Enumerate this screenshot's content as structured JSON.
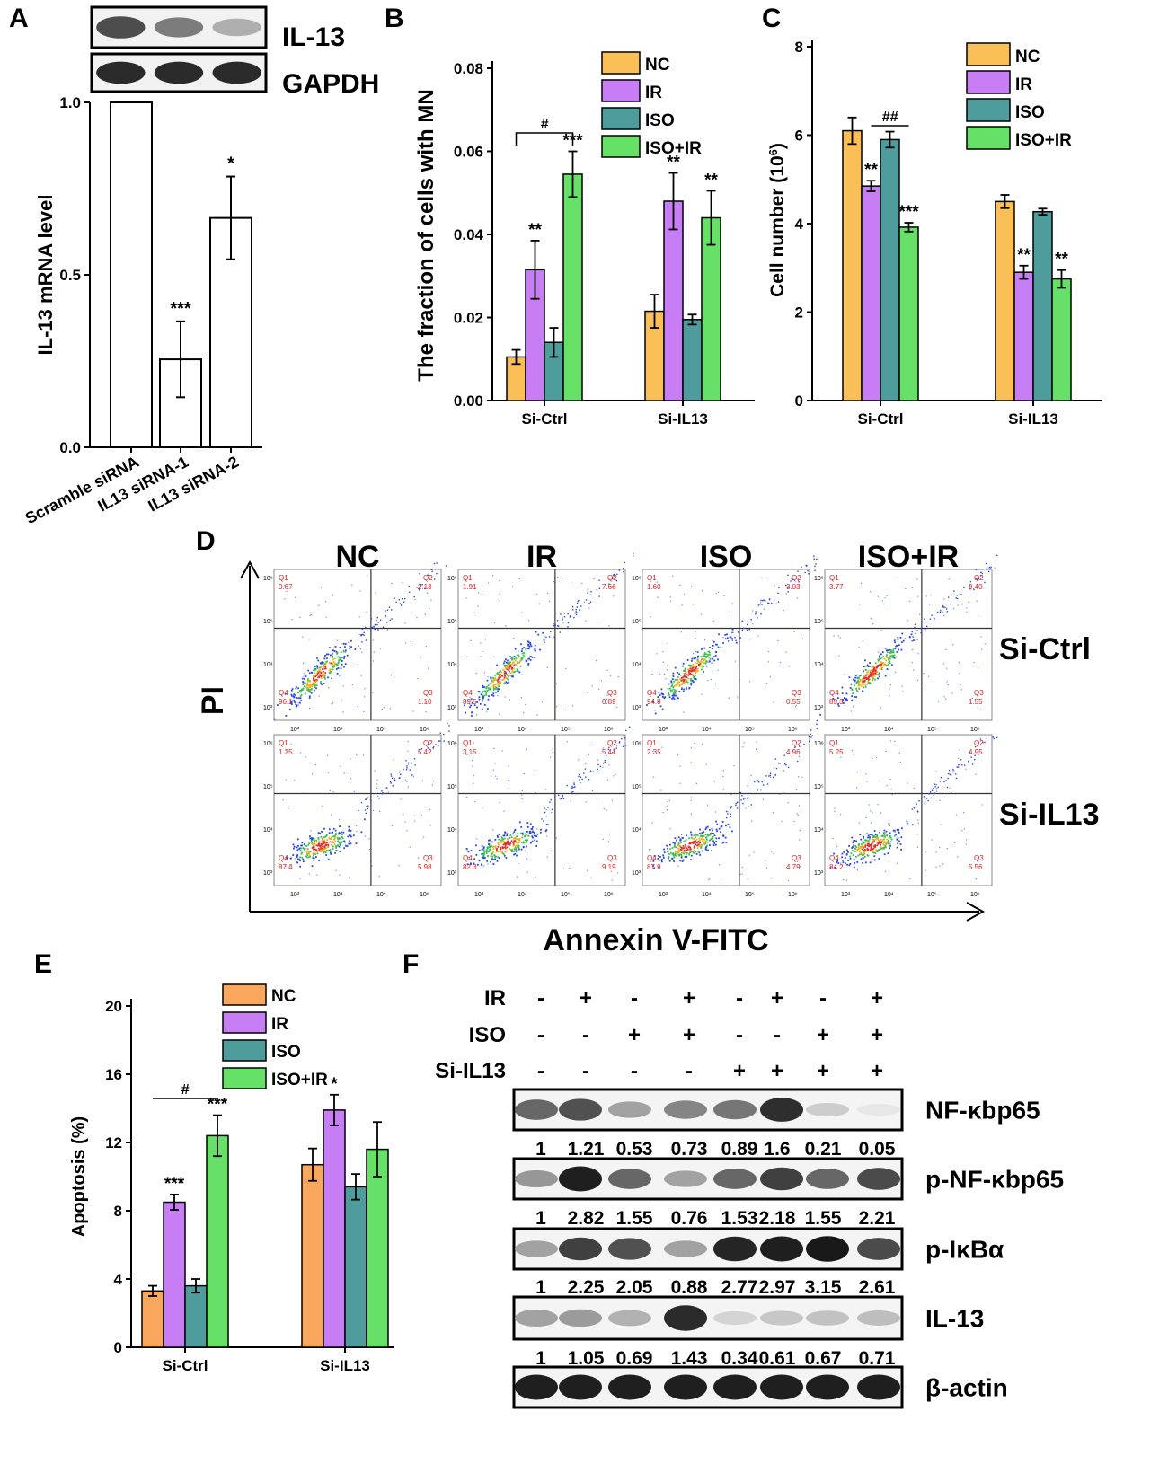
{
  "colors": {
    "NC": "#FBBF57",
    "IR": "#C77DF3",
    "ISO": "#4F9C9C",
    "ISO+IR": "#66E066",
    "NC_E": "#F9A75C",
    "red": "#E02020",
    "blue": "#1F3FD8"
  },
  "panelA": {
    "letter": "A",
    "blot_labels": [
      "IL-13",
      "GAPDH"
    ],
    "chart_data": {
      "type": "bar",
      "categories": [
        "Scramble siRNA",
        "IL13 siRNA-1",
        "IL13 siRNA-2"
      ],
      "values": [
        1.0,
        0.255,
        0.665
      ],
      "errors": [
        0,
        0.11,
        0.12
      ],
      "significance": [
        "",
        "***",
        "*"
      ],
      "ylabel": "IL-13 mRNA level",
      "ylim": [
        0,
        1.0
      ],
      "yticks": [
        "0.0",
        "0.5",
        "1.0"
      ],
      "ytick_values": [
        0,
        0.5,
        1.0
      ]
    }
  },
  "panelB": {
    "letter": "B",
    "chart_data": {
      "type": "bar",
      "categories": [
        "Si-Ctrl",
        "Si-IL13"
      ],
      "series": [
        {
          "name": "NC",
          "values": [
            0.0105,
            0.0215
          ],
          "errors": [
            0.0017,
            0.004
          ],
          "sig": [
            "",
            ""
          ]
        },
        {
          "name": "IR",
          "values": [
            0.0315,
            0.048
          ],
          "errors": [
            0.007,
            0.0068
          ],
          "sig": [
            "**",
            "**"
          ]
        },
        {
          "name": "ISO",
          "values": [
            0.014,
            0.0195
          ],
          "errors": [
            0.0035,
            0.0012
          ],
          "sig": [
            "",
            ""
          ]
        },
        {
          "name": "ISO+IR",
          "values": [
            0.0545,
            0.044
          ],
          "errors": [
            0.0055,
            0.0065
          ],
          "sig": [
            "***",
            "**"
          ]
        }
      ],
      "ylabel": "The fraction of cells with MN",
      "ylim": [
        0,
        0.08
      ],
      "yticks": [
        "0.00",
        "0.02",
        "0.04",
        "0.06",
        "0.08"
      ],
      "ytick_values": [
        0,
        0.02,
        0.04,
        0.06,
        0.08
      ],
      "bracket": "#"
    }
  },
  "panelC": {
    "letter": "C",
    "chart_data": {
      "type": "bar",
      "categories": [
        "Si-Ctrl",
        "Si-IL13"
      ],
      "series": [
        {
          "name": "NC",
          "values": [
            6.1,
            4.5
          ],
          "errors": [
            0.3,
            0.15
          ],
          "sig": [
            "",
            ""
          ]
        },
        {
          "name": "IR",
          "values": [
            4.85,
            2.9
          ],
          "errors": [
            0.12,
            0.15
          ],
          "sig": [
            "**",
            "**"
          ]
        },
        {
          "name": "ISO",
          "values": [
            5.9,
            4.27
          ],
          "errors": [
            0.18,
            0.07
          ],
          "sig": [
            "",
            ""
          ]
        },
        {
          "name": "ISO+IR",
          "values": [
            3.92,
            2.75
          ],
          "errors": [
            0.1,
            0.2
          ],
          "sig": [
            "***",
            "**"
          ]
        }
      ],
      "ylabel_main": "Cell number (10",
      "ylabel_sup": "6",
      "ylabel_end": ")",
      "ylim": [
        0,
        8
      ],
      "yticks": [
        "0",
        "2",
        "4",
        "6",
        "8"
      ],
      "ytick_values": [
        0,
        2,
        4,
        6,
        8
      ],
      "bracket": "##"
    }
  },
  "panelD": {
    "letter": "D",
    "columns": [
      "NC",
      "IR",
      "ISO",
      "ISO+IR"
    ],
    "rows": [
      "Si-Ctrl",
      "Si-IL13"
    ],
    "xlabel": "Annexin V-FITC",
    "ylabel": "PI",
    "quadrant_names": [
      "Q1",
      "Q2",
      "Q3",
      "Q4"
    ],
    "axis_ticks": [
      "10³",
      "10⁴",
      "10⁵",
      "10⁶"
    ],
    "quadrants": [
      [
        [
          "0.67",
          "2.13",
          "1.10",
          "96.1"
        ],
        [
          "1.91",
          "7.66",
          "0.89",
          "89.5"
        ],
        [
          "1.60",
          "3.03",
          "0.55",
          "94.8"
        ],
        [
          "3.77",
          "9.40",
          "1.55",
          "85.3"
        ]
      ],
      [
        [
          "1.25",
          "5.42",
          "5.98",
          "87.4"
        ],
        [
          "3.15",
          "5.41",
          "9.19",
          "82.3"
        ],
        [
          "2.35",
          "4.96",
          "4.79",
          "87.9"
        ],
        [
          "5.25",
          "4.95",
          "5.56",
          "84.2"
        ]
      ]
    ]
  },
  "panelE": {
    "letter": "E",
    "chart_data": {
      "type": "bar",
      "categories": [
        "Si-Ctrl",
        "Si-IL13"
      ],
      "series": [
        {
          "name": "NC",
          "values": [
            3.3,
            10.7
          ],
          "errors": [
            0.3,
            0.95
          ],
          "sig": [
            "",
            ""
          ]
        },
        {
          "name": "IR",
          "values": [
            8.5,
            13.9
          ],
          "errors": [
            0.45,
            0.9
          ],
          "sig": [
            "***",
            "*"
          ]
        },
        {
          "name": "ISO",
          "values": [
            3.6,
            9.4
          ],
          "errors": [
            0.4,
            0.75
          ],
          "sig": [
            "",
            ""
          ]
        },
        {
          "name": "ISO+IR",
          "values": [
            12.4,
            11.6
          ],
          "errors": [
            1.2,
            1.6
          ],
          "sig": [
            "***",
            ""
          ]
        }
      ],
      "ylabel": "Apoptosis (%)",
      "ylim": [
        0,
        20
      ],
      "yticks": [
        "0",
        "4",
        "8",
        "12",
        "16",
        "20"
      ],
      "ytick_values": [
        0,
        4,
        8,
        12,
        16,
        20
      ],
      "bracket": "#"
    }
  },
  "panelF": {
    "letter": "F",
    "conditions": [
      {
        "label": "IR",
        "values": [
          "-",
          "+",
          "-",
          "+",
          "-",
          "+",
          "-",
          "+"
        ]
      },
      {
        "label": "ISO",
        "values": [
          "-",
          "-",
          "+",
          "+",
          "-",
          "-",
          "+",
          "+"
        ]
      },
      {
        "label": "Si-IL13",
        "values": [
          "-",
          "-",
          "-",
          "-",
          "+",
          "+",
          "+",
          "+"
        ]
      }
    ],
    "blots": [
      {
        "label": "NF-κbp65",
        "values": [
          "1",
          "1.21",
          "0.53",
          "0.73",
          "0.89",
          "1.6",
          "0.21",
          "0.05"
        ],
        "intensity": [
          0.62,
          0.72,
          0.35,
          0.48,
          0.55,
          0.88,
          0.15,
          0.03
        ]
      },
      {
        "label": "p-NF-κbp65",
        "values": [
          "1",
          "2.82",
          "1.55",
          "0.76",
          "1.53",
          "2.18",
          "1.55",
          "2.21"
        ],
        "intensity": [
          0.4,
          0.95,
          0.62,
          0.35,
          0.62,
          0.8,
          0.62,
          0.75
        ]
      },
      {
        "label": "p-IκBα",
        "values": [
          "1",
          "2.25",
          "2.05",
          "0.88",
          "2.77",
          "2.97",
          "3.15",
          "2.61"
        ],
        "intensity": [
          0.35,
          0.8,
          0.72,
          0.35,
          0.92,
          0.95,
          0.98,
          0.75
        ]
      },
      {
        "label": "IL-13",
        "values": [
          "1",
          "1.05",
          "0.69",
          "1.43",
          "0.34",
          "0.61",
          "0.67",
          "0.71"
        ],
        "intensity": [
          0.35,
          0.38,
          0.28,
          0.9,
          0.12,
          0.18,
          0.2,
          0.22
        ]
      },
      {
        "label": "β-actin",
        "values": [],
        "intensity": [
          0.95,
          0.95,
          0.95,
          0.95,
          0.95,
          0.95,
          0.95,
          0.95
        ]
      }
    ]
  }
}
